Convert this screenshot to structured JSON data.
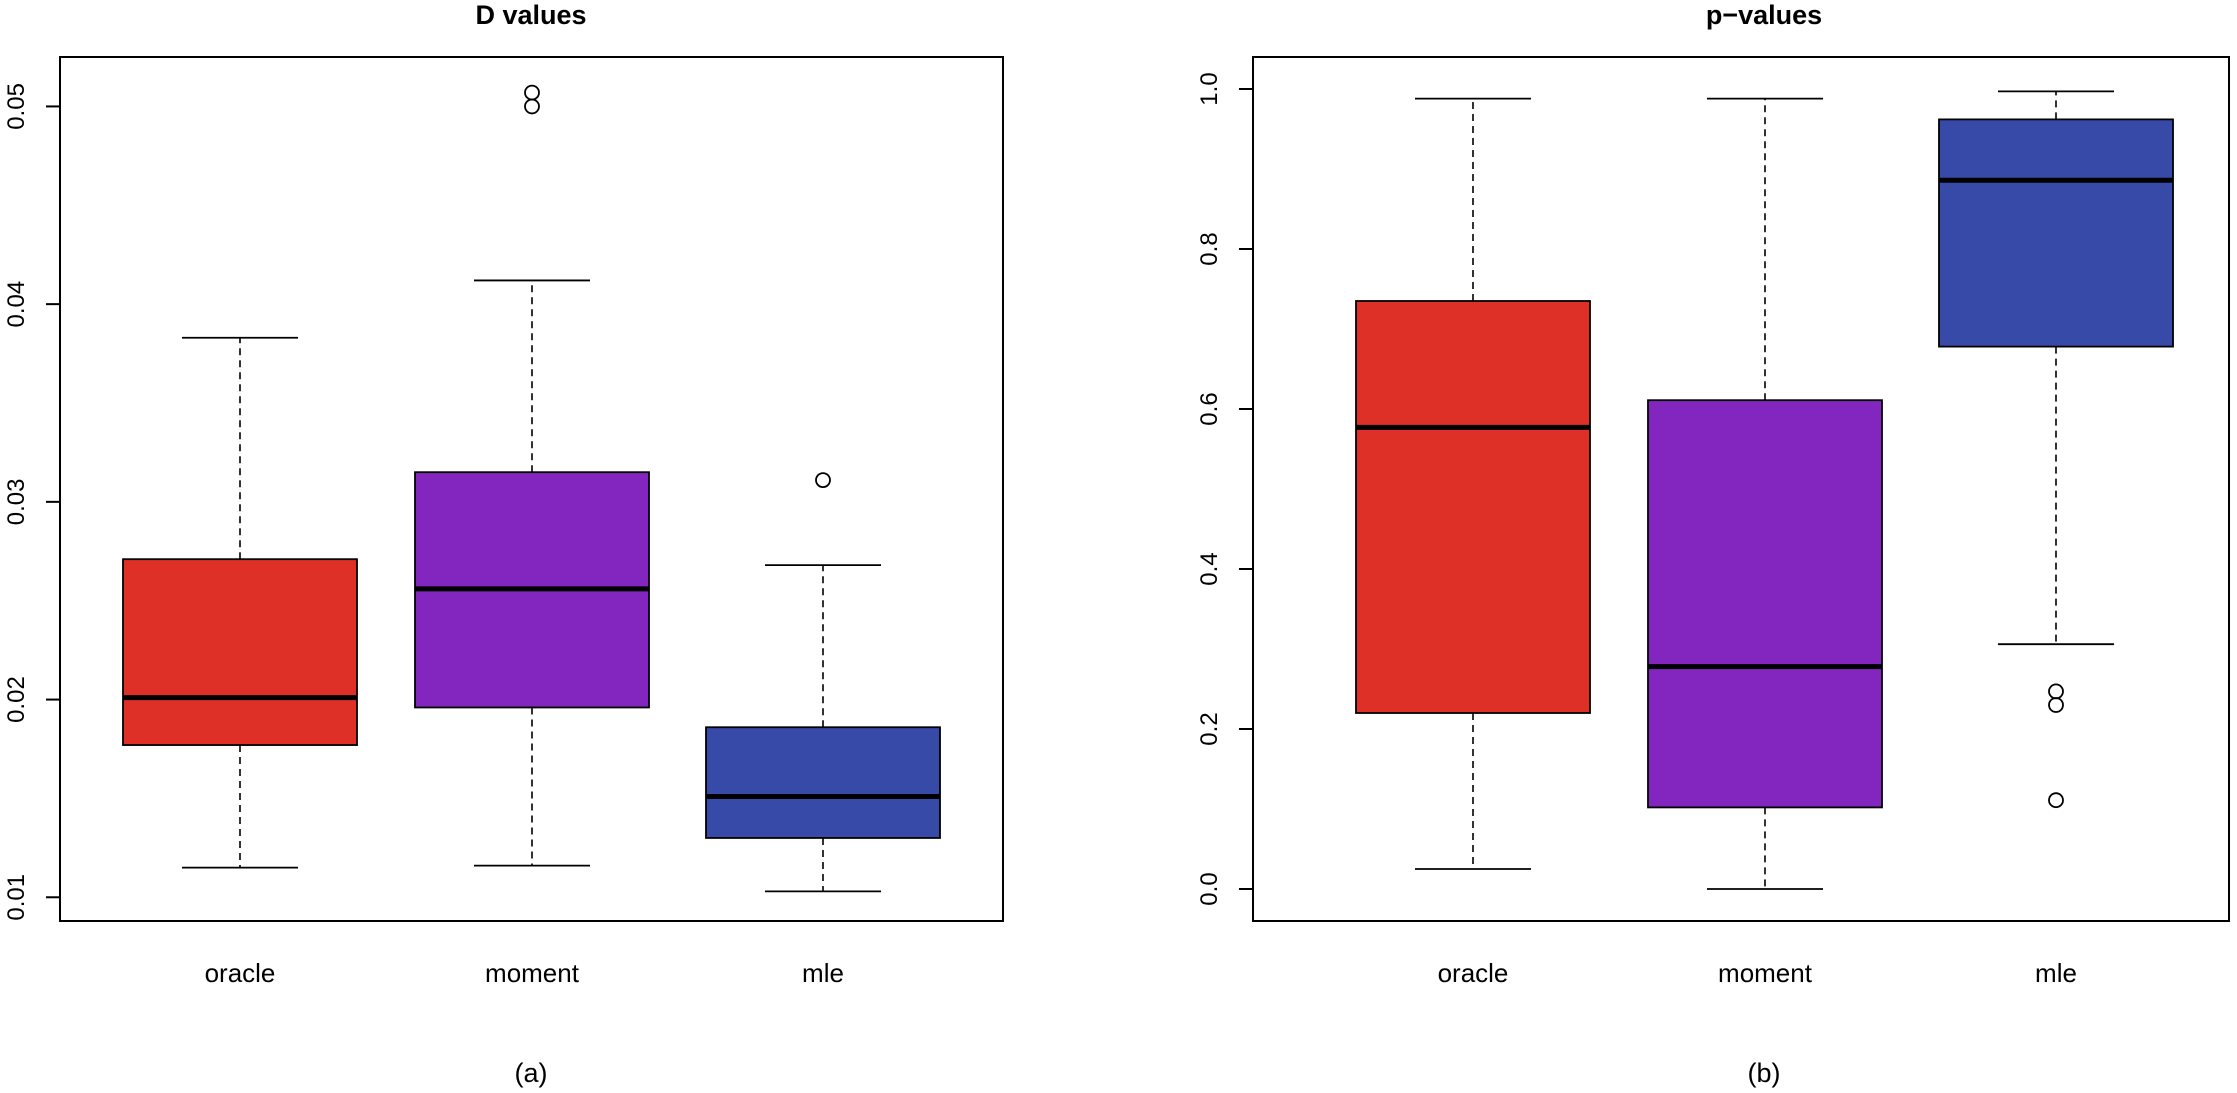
{
  "chart_data": [
    {
      "type": "boxplot",
      "title": "D values",
      "caption": "(a)",
      "xlabel": "",
      "ylabel": "",
      "ylim": [
        0.0088,
        0.0525
      ],
      "yticks": [
        0.01,
        0.02,
        0.03,
        0.04,
        0.05
      ],
      "ytick_labels": [
        "0.01",
        "0.02",
        "0.03",
        "0.04",
        "0.05"
      ],
      "categories": [
        "oracle",
        "moment",
        "mle"
      ],
      "boxes": [
        {
          "name": "oracle",
          "color": "#de3027",
          "whisker_low": 0.0115,
          "q1": 0.0177,
          "median": 0.0201,
          "q3": 0.0271,
          "whisker_high": 0.0383,
          "outliers": []
        },
        {
          "name": "moment",
          "color": "#8326c0",
          "whisker_low": 0.0116,
          "q1": 0.0196,
          "median": 0.0256,
          "q3": 0.0315,
          "whisker_high": 0.0412,
          "outliers": [
            0.05,
            0.0507
          ]
        },
        {
          "name": "mle",
          "color": "#384aa8",
          "whisker_low": 0.0103,
          "q1": 0.013,
          "median": 0.0151,
          "q3": 0.0186,
          "whisker_high": 0.0268,
          "outliers": [
            0.0311
          ]
        }
      ]
    },
    {
      "type": "boxplot",
      "title": "p−values",
      "caption": "(b)",
      "xlabel": "",
      "ylabel": "",
      "ylim": [
        -0.04,
        1.04
      ],
      "yticks": [
        0.0,
        0.2,
        0.4,
        0.6,
        0.8,
        1.0
      ],
      "ytick_labels": [
        "0.0",
        "0.2",
        "0.4",
        "0.6",
        "0.8",
        "1.0"
      ],
      "categories": [
        "oracle",
        "moment",
        "mle"
      ],
      "boxes": [
        {
          "name": "oracle",
          "color": "#de3027",
          "whisker_low": 0.025,
          "q1": 0.22,
          "median": 0.577,
          "q3": 0.735,
          "whisker_high": 0.988,
          "outliers": []
        },
        {
          "name": "moment",
          "color": "#8326c0",
          "whisker_low": 0.0,
          "q1": 0.102,
          "median": 0.278,
          "q3": 0.611,
          "whisker_high": 0.988,
          "outliers": []
        },
        {
          "name": "mle",
          "color": "#384aa8",
          "whisker_low": 0.306,
          "q1": 0.678,
          "median": 0.886,
          "q3": 0.962,
          "whisker_high": 0.997,
          "outliers": [
            0.111,
            0.23,
            0.247
          ]
        }
      ]
    }
  ]
}
